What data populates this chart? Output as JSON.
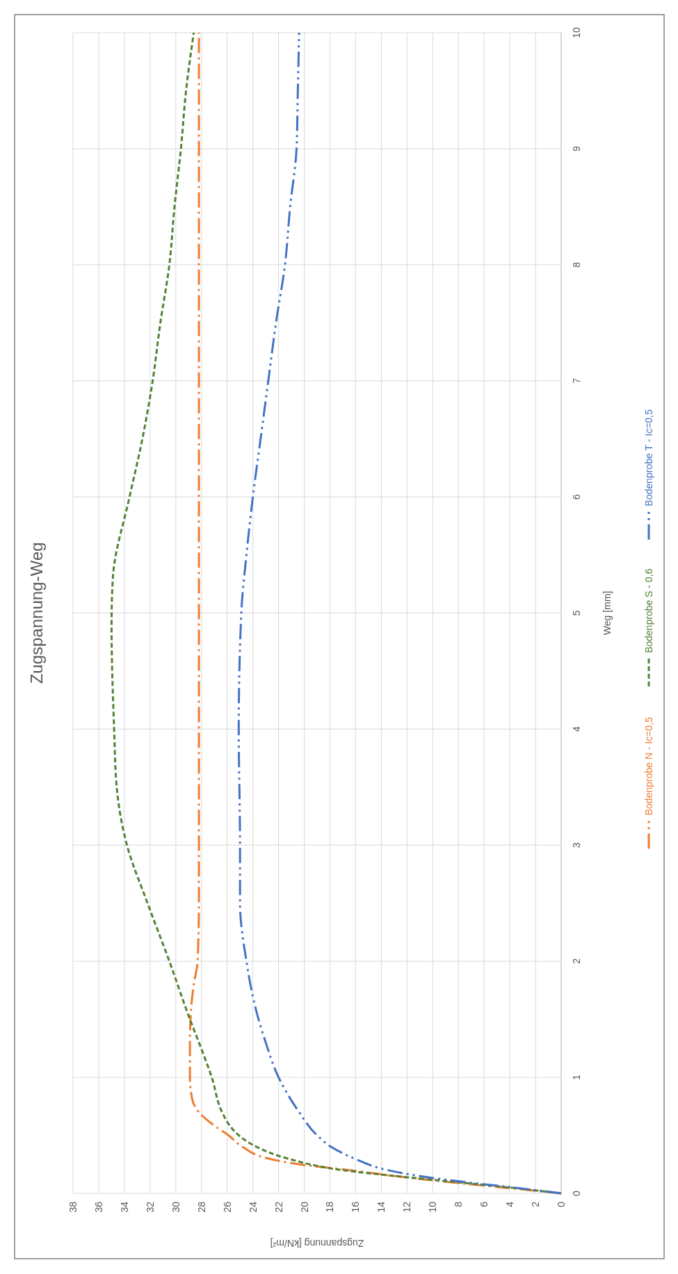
{
  "chart_data": {
    "type": "line",
    "title": "Zugspannung-Weg",
    "xlabel": "Zugspannung [kN/m²]",
    "ylabel": "Weg [mm]",
    "xlim": [
      38,
      0
    ],
    "xticks": [
      38,
      36,
      34,
      32,
      30,
      28,
      26,
      24,
      22,
      20,
      18,
      16,
      14,
      12,
      10,
      8,
      6,
      4,
      2,
      0
    ],
    "ylim": [
      0,
      10
    ],
    "yticks": [
      0,
      1,
      2,
      3,
      4,
      5,
      6,
      7,
      8,
      9,
      10
    ],
    "grid": true,
    "legend": "right",
    "marker": "none",
    "series": [
      {
        "name": "Bodenprobe N - Ic=0,5",
        "color": "#ed7d31",
        "line_style": "dashed",
        "values": [
          0,
          0.05,
          0.1,
          0.15,
          0.2,
          0.25,
          0.3,
          0.4,
          0.5,
          0.6,
          0.7,
          0.8,
          1,
          1.3,
          1.6,
          1.8,
          2,
          2.5,
          3,
          4,
          5,
          6,
          7,
          8,
          9,
          10
        ],
        "x": [
          0,
          4.5,
          9,
          13,
          16.5,
          20.4,
          22.8,
          24.8,
          25.9,
          27.2,
          28.2,
          28.7,
          28.9,
          28.9,
          28.8,
          28.6,
          28.3,
          28.2,
          28.2,
          28.2,
          28.2,
          28.2,
          28.2,
          28.2,
          28.2,
          28.2
        ]
      },
      {
        "name": "Bodenprobe S - 0,6",
        "color": "#548235",
        "line_style": "dashed",
        "values": [
          0,
          0.05,
          0.1,
          0.15,
          0.2,
          0.3,
          0.4,
          0.5,
          0.6,
          0.7,
          1,
          1.3,
          1.5,
          2,
          2.5,
          3,
          3.5,
          4,
          4.9,
          5.3,
          6,
          6.5,
          7,
          7.5,
          8,
          8.5,
          9,
          9.5,
          10
        ],
        "x": [
          0,
          4,
          8.5,
          13,
          17,
          21.3,
          23.7,
          25.1,
          25.9,
          26.4,
          27.2,
          28.2,
          28.9,
          30.5,
          32.2,
          33.8,
          34.6,
          34.8,
          35,
          34.9,
          33.6,
          32.6,
          31.8,
          31.2,
          30.5,
          30.1,
          29.6,
          29.2,
          28.6
        ]
      },
      {
        "name": "Bodenprobe T - Ic=0,5",
        "color": "#4472c4",
        "line_style": "dashed",
        "values": [
          0,
          0.05,
          0.1,
          0.15,
          0.2,
          0.3,
          0.4,
          0.5,
          0.7,
          1,
          1.3,
          1.6,
          2,
          2.5,
          3,
          4,
          5,
          5.5,
          6,
          6.5,
          7,
          7.5,
          8,
          8.5,
          9,
          9.5,
          10
        ],
        "x": [
          0,
          3.7,
          7.7,
          11.1,
          13.5,
          16.1,
          17.9,
          19,
          20.4,
          22,
          23,
          23.8,
          24.5,
          25,
          25,
          25.1,
          24.9,
          24.5,
          24,
          23.4,
          22.8,
          22.2,
          21.5,
          21.1,
          20.6,
          20.5,
          20.4
        ]
      }
    ]
  }
}
